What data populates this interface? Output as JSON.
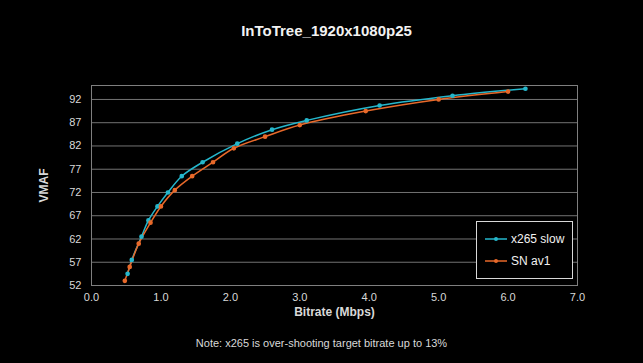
{
  "chart_data": {
    "type": "line",
    "title": "InToTree_1920x1080p25",
    "x_label": "Bitrate (Mbps)",
    "y_label": "VMAF",
    "caption": "Note: x265 is over-shooting target bitrate up to 13%",
    "xlim": [
      0,
      7
    ],
    "xticks": [
      {
        "value": 0,
        "label": "0.0"
      },
      {
        "value": 1,
        "label": "1.0"
      },
      {
        "value": 2,
        "label": "2.0"
      },
      {
        "value": 3,
        "label": "3.0"
      },
      {
        "value": 4,
        "label": "4.0"
      },
      {
        "value": 5,
        "label": "5.0"
      },
      {
        "value": 6,
        "label": "6.0"
      },
      {
        "value": 7,
        "label": "7.0"
      }
    ],
    "ylim": [
      52,
      95
    ],
    "yticks": [
      52,
      57,
      62,
      67,
      72,
      77,
      82,
      87,
      92
    ],
    "grid": true,
    "legend": "lower right",
    "marker": "circle",
    "series": [
      {
        "name": "x265 slow",
        "color": "#25b7cc",
        "x": [
          0.52,
          0.58,
          0.72,
          0.82,
          0.95,
          1.1,
          1.3,
          1.6,
          2.1,
          2.6,
          3.1,
          4.15,
          5.2,
          6.25
        ],
        "values": [
          54.5,
          57.5,
          62.5,
          66,
          69,
          72,
          75.5,
          78.5,
          82.5,
          85.5,
          87.5,
          90.7,
          92.8,
          94.3
        ]
      },
      {
        "name": "SN av1",
        "color": "#e8692a",
        "x": [
          0.48,
          0.55,
          0.68,
          0.85,
          1.0,
          1.2,
          1.45,
          1.75,
          2.05,
          2.5,
          3.0,
          3.95,
          5.0,
          6.0
        ],
        "values": [
          53,
          56,
          61,
          65.5,
          69,
          72.5,
          75.5,
          78.5,
          81.5,
          84,
          86.5,
          89.5,
          92,
          93.7
        ]
      }
    ]
  }
}
